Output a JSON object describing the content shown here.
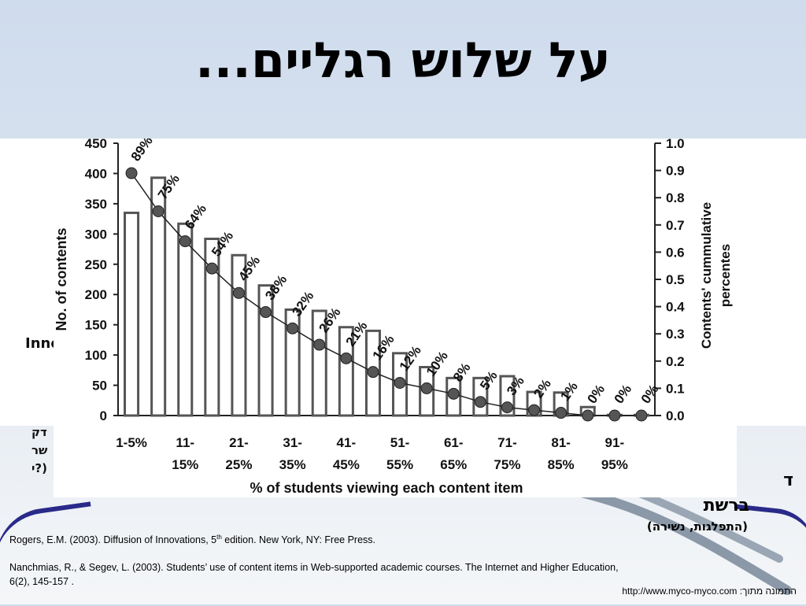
{
  "slide": {
    "title": "על שלוש רגליים...",
    "side_left_fragment_1": "Inno",
    "side_left_fragment_2": "דק",
    "side_left_fragment_3": "שר",
    "side_left_fragment_4": "(?י",
    "right_text_1": "ד",
    "right_text_2": "ברשת",
    "right_text_3": "(התפלגות, נשירה)",
    "ref1_main": "Rogers, E.M. (2003). Diffusion of Innovations, 5",
    "ref1_sup": "th",
    "ref1_end": " edition. New York, NY: Free Press.",
    "ref2": "Nanchmias, R., & Segev, L. (2003). Students’ use of content items in Web-supported academic courses. The Internet and Higher Education, 6(2), 145-157 .",
    "credit": "התמונה מתוך: http://www.myco-myco.com"
  },
  "chart_data": {
    "type": "bar",
    "xlabel": "% of students viewing each content item",
    "ylabel_left": "No. of contents",
    "ylabel_right": [
      "Contents' cummulative",
      "percentes"
    ],
    "ylim_left": [
      0,
      450
    ],
    "ylim_right": [
      0,
      1.0
    ],
    "yticks_left": [
      "0",
      "50",
      "100",
      "150",
      "200",
      "250",
      "300",
      "350",
      "400",
      "450"
    ],
    "yticks_right": [
      "0.0",
      "0.1",
      "0.2",
      "0.3",
      "0.4",
      "0.5",
      "0.6",
      "0.7",
      "0.8",
      "0.9",
      "1.0"
    ],
    "x_tick_labels_top": [
      "1-5%",
      "11-",
      "21-",
      "31-",
      "41-",
      "51-",
      "61-",
      "71-",
      "81-",
      "91-"
    ],
    "x_tick_labels_bottom": [
      "",
      "15%",
      "25%",
      "35%",
      "45%",
      "55%",
      "65%",
      "75%",
      "85%",
      "95%"
    ],
    "bars": [
      335,
      393,
      317,
      292,
      265,
      215,
      175,
      173,
      146,
      140,
      103,
      80,
      62,
      62,
      65,
      39,
      38,
      14,
      1,
      1
    ],
    "cumulative": [
      0.89,
      0.75,
      0.64,
      0.54,
      0.45,
      0.38,
      0.32,
      0.26,
      0.21,
      0.16,
      0.12,
      0.1,
      0.08,
      0.05,
      0.03,
      0.02,
      0.01,
      0.0,
      0.0,
      0.0
    ],
    "point_labels": [
      "89%",
      "75%",
      "64%",
      "54%",
      "45%",
      "38%",
      "32%",
      "26%",
      "21%",
      "16%",
      "12%",
      "10%",
      "8%",
      "5%",
      "3%",
      "2%",
      "1%",
      "0%",
      "0%",
      "0%"
    ],
    "colors": {
      "bar_fill": "#ffffff",
      "bar_stroke": "#555555",
      "point": "#555555",
      "line": "#222222"
    }
  }
}
